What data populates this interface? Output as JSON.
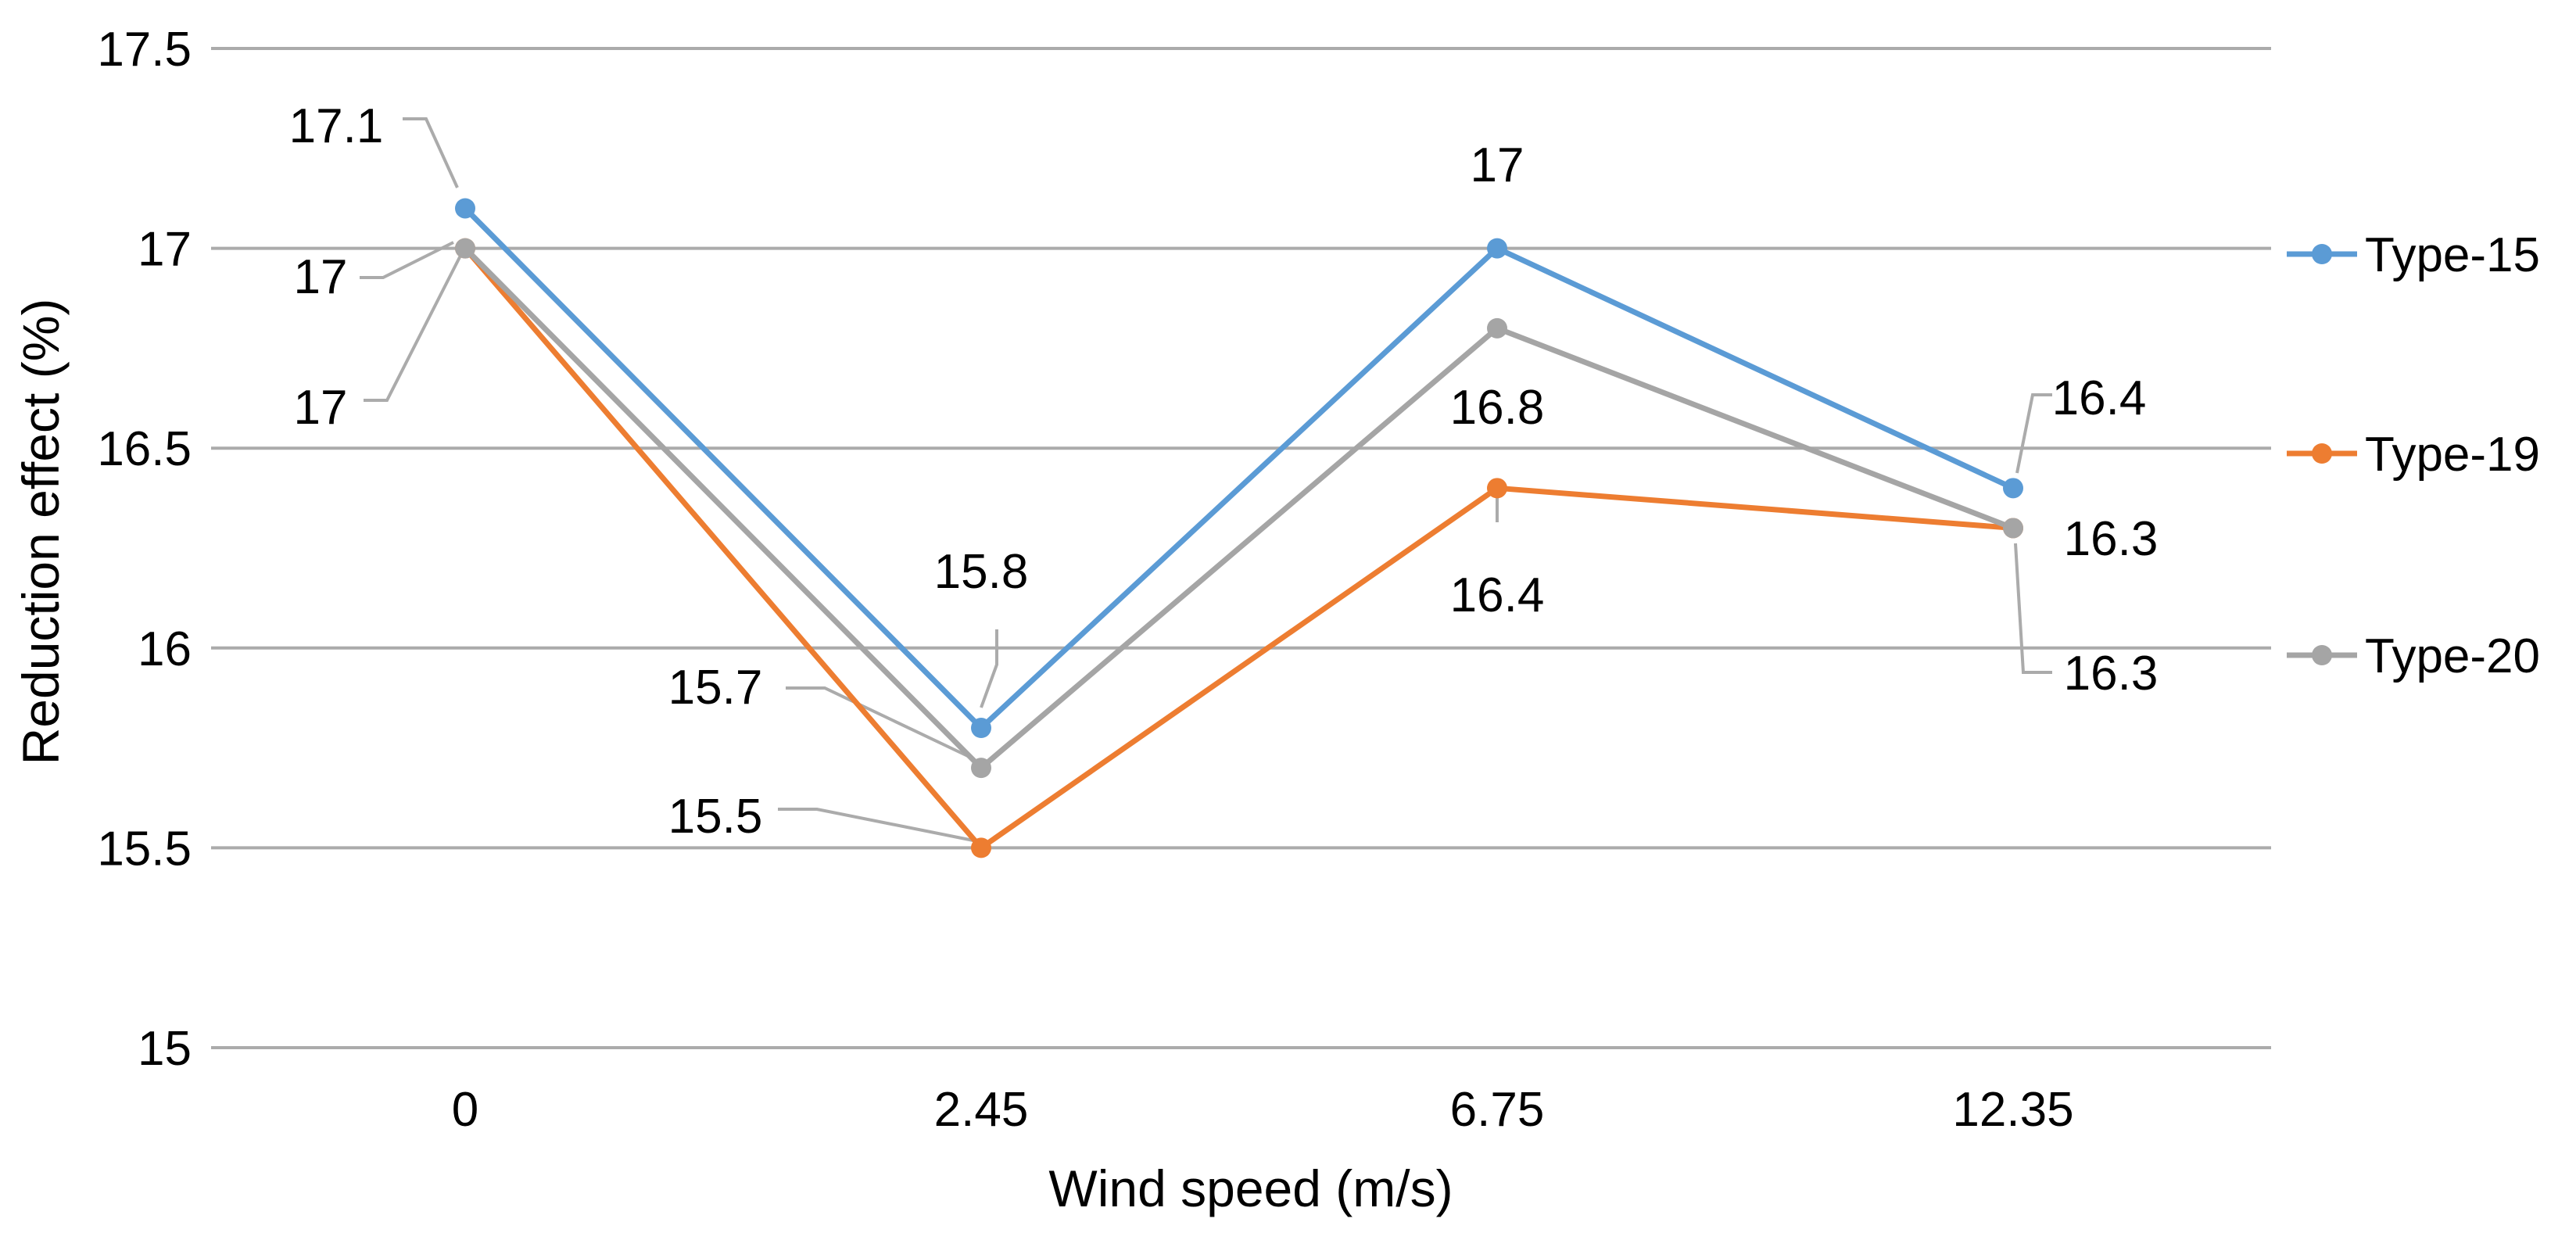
{
  "chart_data": {
    "type": "line",
    "title": "",
    "xlabel": "Wind speed (m/s)",
    "ylabel": "Reduction effect (%)",
    "x": [
      "0",
      "2.45",
      "6.75",
      "12.35"
    ],
    "y_ticks": [
      "15",
      "15.5",
      "16",
      "16.5",
      "17",
      "17.5"
    ],
    "ylim": [
      15,
      17.5
    ],
    "grid": true,
    "legend_position": "right",
    "series": [
      {
        "name": "Type-15",
        "color": "#5B9BD5",
        "values": [
          17.1,
          15.8,
          17,
          16.4
        ],
        "labels": [
          "17.1",
          "15.8",
          "17",
          "16.4"
        ]
      },
      {
        "name": "Type-19",
        "color": "#ED7D31",
        "values": [
          17,
          15.5,
          16.4,
          16.3
        ],
        "labels": [
          "17",
          "15.5",
          "16.4",
          "16.3"
        ]
      },
      {
        "name": "Type-20",
        "color": "#A5A5A5",
        "values": [
          17,
          15.7,
          16.8,
          16.3
        ],
        "labels": [
          "17",
          "15.7",
          "16.8",
          "16.3"
        ]
      }
    ]
  }
}
